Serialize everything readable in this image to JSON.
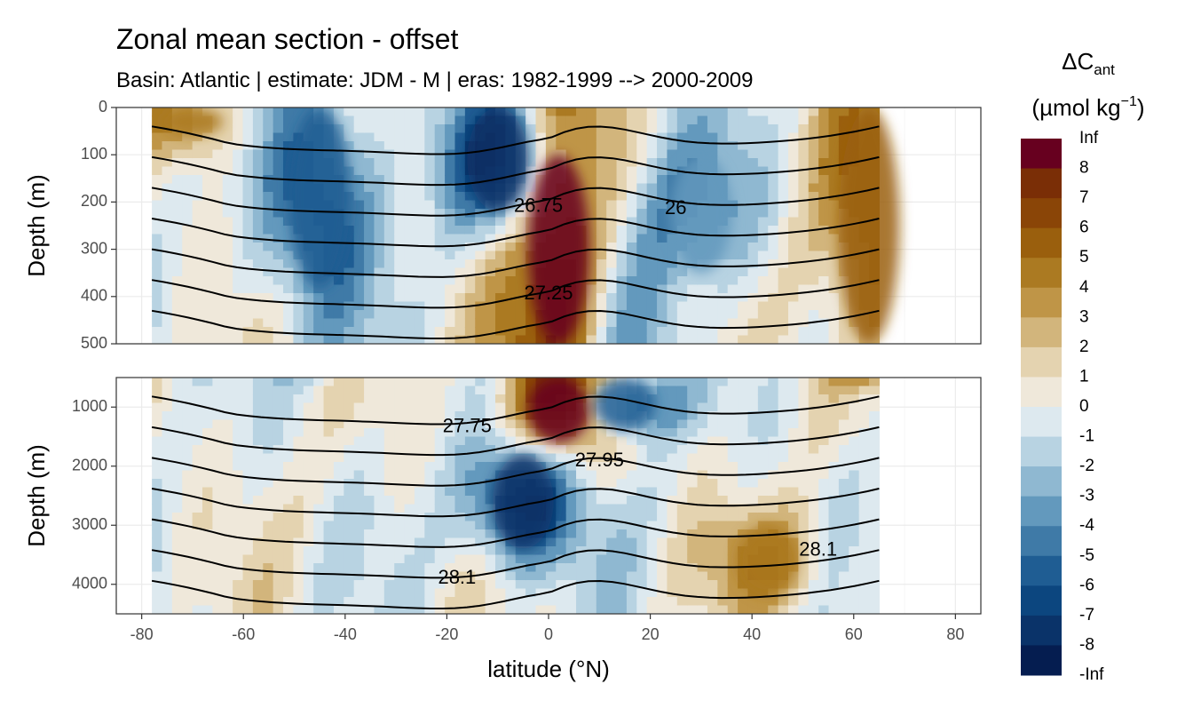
{
  "chart_data": {
    "type": "heatmap",
    "title": "Zonal mean section - offset",
    "subtitle": "Basin: Atlantic | estimate: JDM - M | eras: 1982-1999 --> 2000-2009",
    "xlabel": "latitude (°N)",
    "ylabel": "Depth (m)",
    "xlim": [
      -85,
      85
    ],
    "x_ticks": [
      -80,
      -60,
      -40,
      -20,
      0,
      20,
      40,
      60,
      80
    ],
    "x_tick_labels": [
      "-80",
      "-60",
      "-40",
      "-20",
      "0",
      "20",
      "40",
      "60",
      "80"
    ],
    "data_lat_range": [
      -78,
      65
    ],
    "panels": [
      {
        "name": "upper",
        "ylim": [
          0,
          500
        ],
        "y_ticks": [
          0,
          100,
          200,
          300,
          400,
          500
        ],
        "y_tick_labels": [
          "0",
          "100",
          "200",
          "300",
          "400",
          "500"
        ],
        "contour_labels": [
          {
            "text": "26.75",
            "lat": -2,
            "depth": 210
          },
          {
            "text": "26",
            "lat": 25,
            "depth": 215
          },
          {
            "text": "27.25",
            "lat": 0,
            "depth": 395
          }
        ]
      },
      {
        "name": "lower",
        "ylim": [
          500,
          4500
        ],
        "y_ticks": [
          1000,
          2000,
          3000,
          4000
        ],
        "y_tick_labels": [
          "1000",
          "2000",
          "3000",
          "4000"
        ],
        "contour_labels": [
          {
            "text": "27.75",
            "lat": -16,
            "depth": 1340
          },
          {
            "text": "27.95",
            "lat": 10,
            "depth": 1920
          },
          {
            "text": "28.1",
            "lat": -18,
            "depth": 3900
          },
          {
            "text": "28.1",
            "lat": 53,
            "depth": 3430
          }
        ]
      }
    ],
    "legend": {
      "title": "ΔC",
      "title_subscript": "ant",
      "units": "(µmol kg",
      "units_superscript": "−1",
      "units_end": ")",
      "labels": [
        "Inf",
        "8",
        "7",
        "6",
        "5",
        "4",
        "3",
        "2",
        "1",
        "0",
        "-1",
        "-2",
        "-3",
        "-4",
        "-5",
        "-6",
        "-7",
        "-8",
        "-Inf"
      ],
      "colors": [
        "#67001f",
        "#7a2e06",
        "#8a4507",
        "#9a5f0d",
        "#ab7a22",
        "#bf9547",
        "#d2b57c",
        "#e4d3b0",
        "#efe8da",
        "#dde9ef",
        "#b8d3e2",
        "#8fb8d1",
        "#6399bd",
        "#3f7aa7",
        "#1f5d93",
        "#0c467f",
        "#0a3369",
        "#051d50"
      ]
    },
    "features": [
      {
        "lat": -70,
        "depth_top": 0,
        "depth_bot": 60,
        "value": 4
      },
      {
        "lat": -45,
        "depth_top": 0,
        "depth_bot": 380,
        "value": -6
      },
      {
        "lat": -10,
        "depth_top": 0,
        "depth_bot": 220,
        "value": -8
      },
      {
        "lat": 2,
        "depth_top": 100,
        "depth_bot": 1600,
        "value": 9
      },
      {
        "lat": -5,
        "depth_top": 1800,
        "depth_bot": 3400,
        "value": -8
      },
      {
        "lat": 15,
        "depth_top": 500,
        "depth_bot": 1400,
        "value": -6
      },
      {
        "lat": 30,
        "depth_top": 100,
        "depth_bot": 350,
        "value": -4
      },
      {
        "lat": 43,
        "depth_top": 3000,
        "depth_bot": 4200,
        "value": 4
      },
      {
        "lat": 63,
        "depth_top": 0,
        "depth_bot": 500,
        "value": 5
      }
    ]
  }
}
